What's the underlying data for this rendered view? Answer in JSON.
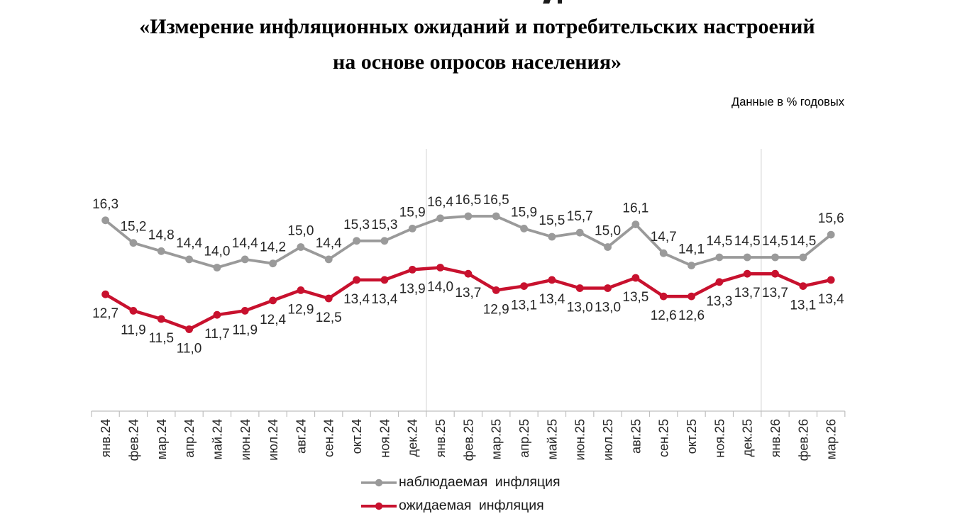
{
  "title": {
    "line1": "«Измерение инфляционных ожиданий и потребительских настроений",
    "line2": "на основе опросов населения»"
  },
  "subtitle": "Данные в % годовых",
  "chart_data": {
    "type": "line",
    "title": "«Измерение инфляционных ожиданий и потребительских настроений на основе опросов населения»",
    "units_note": "Данные в % годовых",
    "xlabel": "",
    "ylabel": "",
    "ylim": [
      10.5,
      17.5
    ],
    "y_axis_visible": false,
    "grid": "two vertical year-separator lines",
    "year_separators_after": [
      "дек.24",
      "дек.25"
    ],
    "legend_position": "bottom",
    "data_labels": "every point labeled, comma decimal",
    "categories": [
      "янв.24",
      "фев.24",
      "мар.24",
      "апр.24",
      "май.24",
      "июн.24",
      "июл.24",
      "авг.24",
      "сен.24",
      "окт.24",
      "ноя.24",
      "дек.24",
      "янв.25",
      "фев.25",
      "мар.25",
      "апр.25",
      "май.25",
      "июн.25",
      "июл.25",
      "авг.25",
      "сен.25",
      "окт.25",
      "ноя.25",
      "дек.25",
      "янв.26",
      "фев.26",
      "мар.26"
    ],
    "series": [
      {
        "key": "observed",
        "name": "наблюдаемая инфляция",
        "color": "#9A9A9A",
        "label_position": "above",
        "values": [
          16.3,
          15.2,
          14.8,
          14.4,
          14.0,
          14.4,
          14.2,
          15.0,
          14.4,
          15.3,
          15.3,
          15.9,
          16.4,
          16.5,
          16.5,
          15.9,
          15.5,
          15.7,
          15.0,
          16.1,
          14.7,
          14.1,
          14.5,
          14.5,
          14.5,
          14.5,
          15.6
        ]
      },
      {
        "key": "expected",
        "name": "ожидаемая инфляция",
        "color": "#C8112E",
        "label_position": "below",
        "values": [
          12.7,
          11.9,
          11.5,
          11.0,
          11.7,
          11.9,
          12.4,
          12.9,
          12.5,
          13.4,
          13.4,
          13.9,
          14.0,
          13.7,
          12.9,
          13.1,
          13.4,
          13.0,
          13.0,
          13.5,
          12.6,
          12.6,
          13.3,
          13.7,
          13.7,
          13.1,
          13.4
        ]
      }
    ],
    "colors": {
      "grid_line": "#D9D9D9",
      "axis_line": "#BFBFBF",
      "label_text": "#262626"
    }
  }
}
